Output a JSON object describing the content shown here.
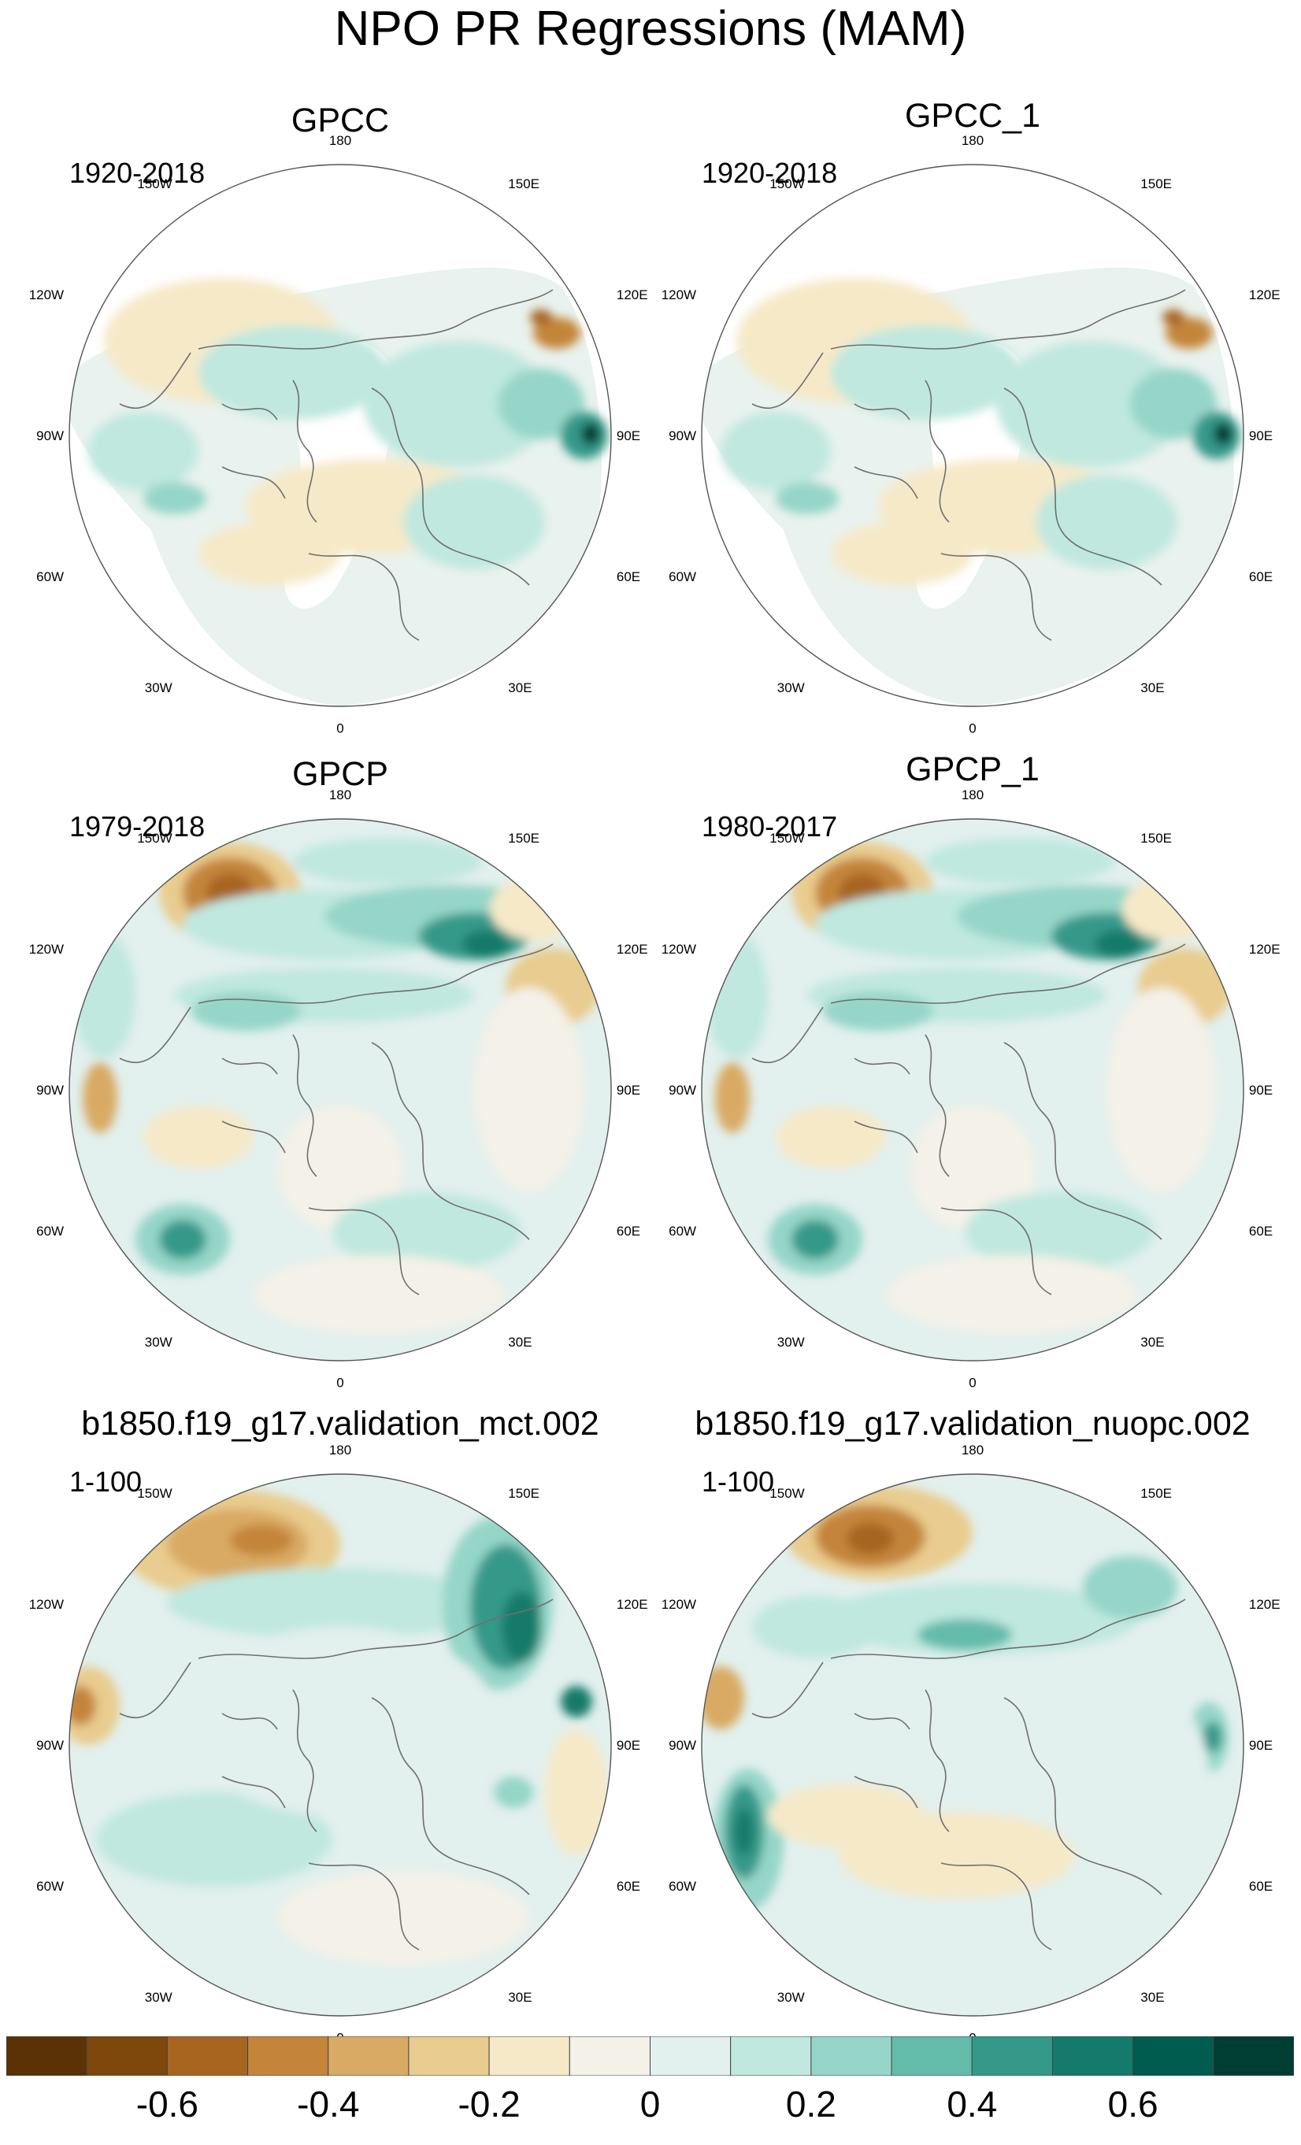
{
  "figure": {
    "title": "NPO PR Regressions (MAM)"
  },
  "panels": [
    {
      "title": "GPCC",
      "period": "1920-2018",
      "field": "gpcc_sparse"
    },
    {
      "title": "GPCC_1",
      "period": "1920-2018",
      "field": "gpcc_sparse"
    },
    {
      "title": "GPCP",
      "period": "1979-2018",
      "field": "gpcp_full"
    },
    {
      "title": "GPCP_1",
      "period": "1980-2017",
      "field": "gpcp_full"
    },
    {
      "title": "b1850.f19_g17.validation_mct.002",
      "period": "1-100",
      "field": "model_mct"
    },
    {
      "title": "b1850.f19_g17.validation_nuopc.002",
      "period": "1-100",
      "field": "model_nuopc"
    }
  ],
  "longitude_labels": [
    "180",
    "150E",
    "120E",
    "90E",
    "60E",
    "30E",
    "0",
    "30W",
    "60W",
    "90W",
    "120W",
    "150W"
  ],
  "colorbar": {
    "colors": [
      "#5a3206",
      "#7e470b",
      "#a76520",
      "#c4853b",
      "#d9aa64",
      "#e9cc8f",
      "#f6e9c8",
      "#f4f1e8",
      "#e2f0ee",
      "#c0e8df",
      "#95d6c8",
      "#63bbaa",
      "#35998a",
      "#147a6b",
      "#005c4f",
      "#003d33"
    ],
    "tick_labels": [
      "-0.6",
      "-0.4",
      "-0.2",
      "0",
      "0.2",
      "0.4",
      "0.6"
    ],
    "tick_values": [
      -0.6,
      -0.4,
      -0.2,
      0,
      0.2,
      0.4,
      0.6
    ],
    "range": [
      -0.8,
      0.8
    ]
  }
}
